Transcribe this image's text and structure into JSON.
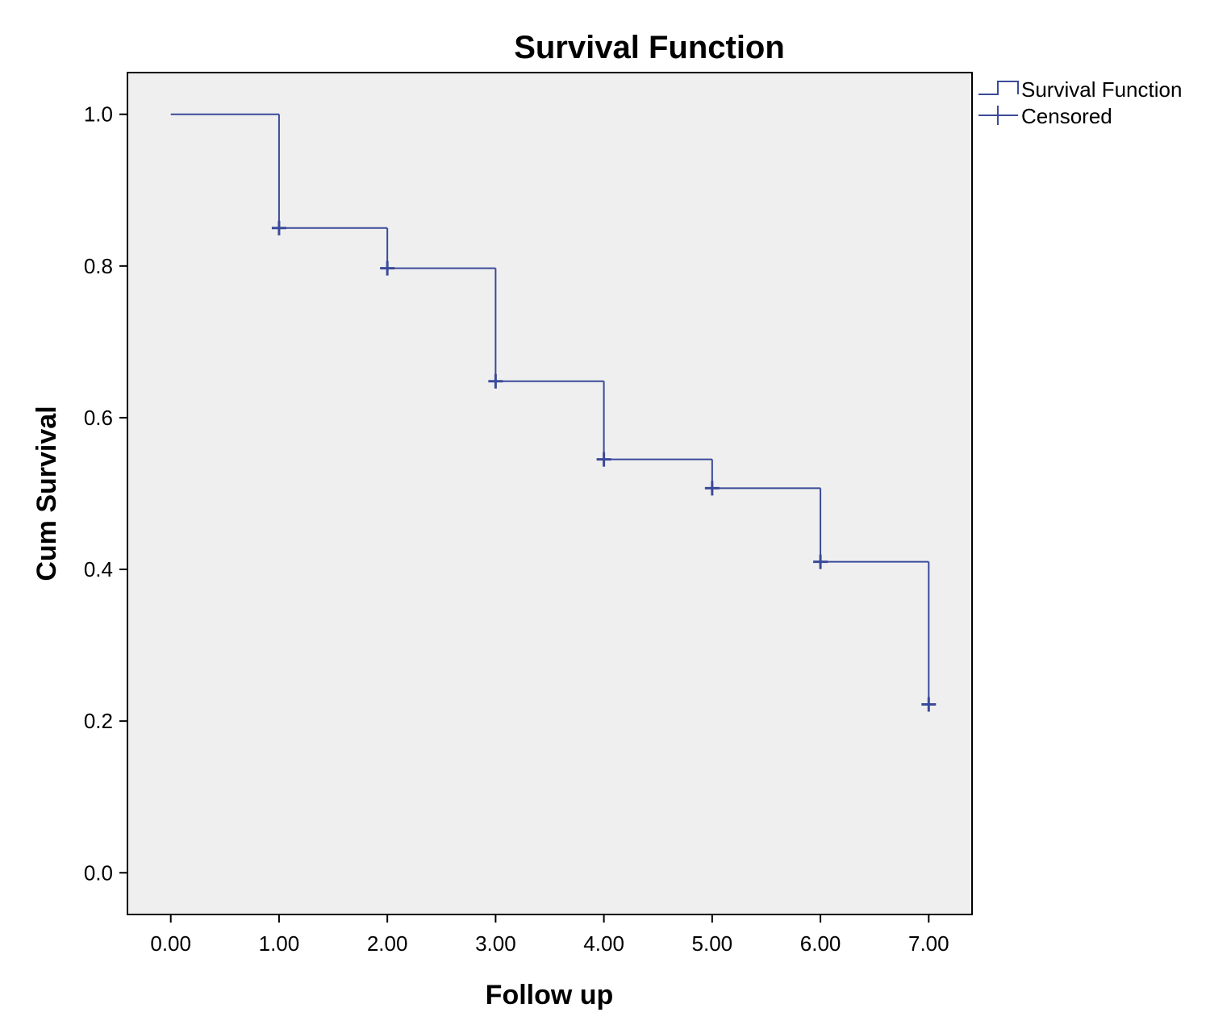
{
  "chart_data": {
    "type": "line",
    "title": "Survival Function",
    "xlabel": "Follow up",
    "ylabel": "Cum Survival",
    "xlim": [
      -0.4,
      7.4
    ],
    "ylim": [
      -0.055,
      1.055
    ],
    "x_ticks": [
      0,
      1,
      2,
      3,
      4,
      5,
      6,
      7
    ],
    "x_tick_labels": [
      "0.00",
      "1.00",
      "2.00",
      "3.00",
      "4.00",
      "5.00",
      "6.00",
      "7.00"
    ],
    "y_ticks": [
      0,
      0.2,
      0.4,
      0.6,
      0.8,
      1.0
    ],
    "y_tick_labels": [
      "0.0",
      "0.2",
      "0.4",
      "0.6",
      "0.8",
      "1.0"
    ],
    "grid": false,
    "legend_position": "top-right",
    "plot_background": "#efefef",
    "series": [
      {
        "name": "Survival Function",
        "kind": "step",
        "color": "#3a4a9a",
        "x": [
          0,
          1,
          2,
          3,
          4,
          5,
          6,
          7
        ],
        "y": [
          1.0,
          0.85,
          0.797,
          0.648,
          0.545,
          0.507,
          0.41,
          0.222
        ]
      },
      {
        "name": "Censored",
        "kind": "marker-plus",
        "color": "#3a4a9a",
        "x": [
          1,
          2,
          3,
          4,
          5,
          6,
          7
        ],
        "y": [
          0.85,
          0.797,
          0.648,
          0.545,
          0.507,
          0.41,
          0.222
        ]
      }
    ]
  }
}
